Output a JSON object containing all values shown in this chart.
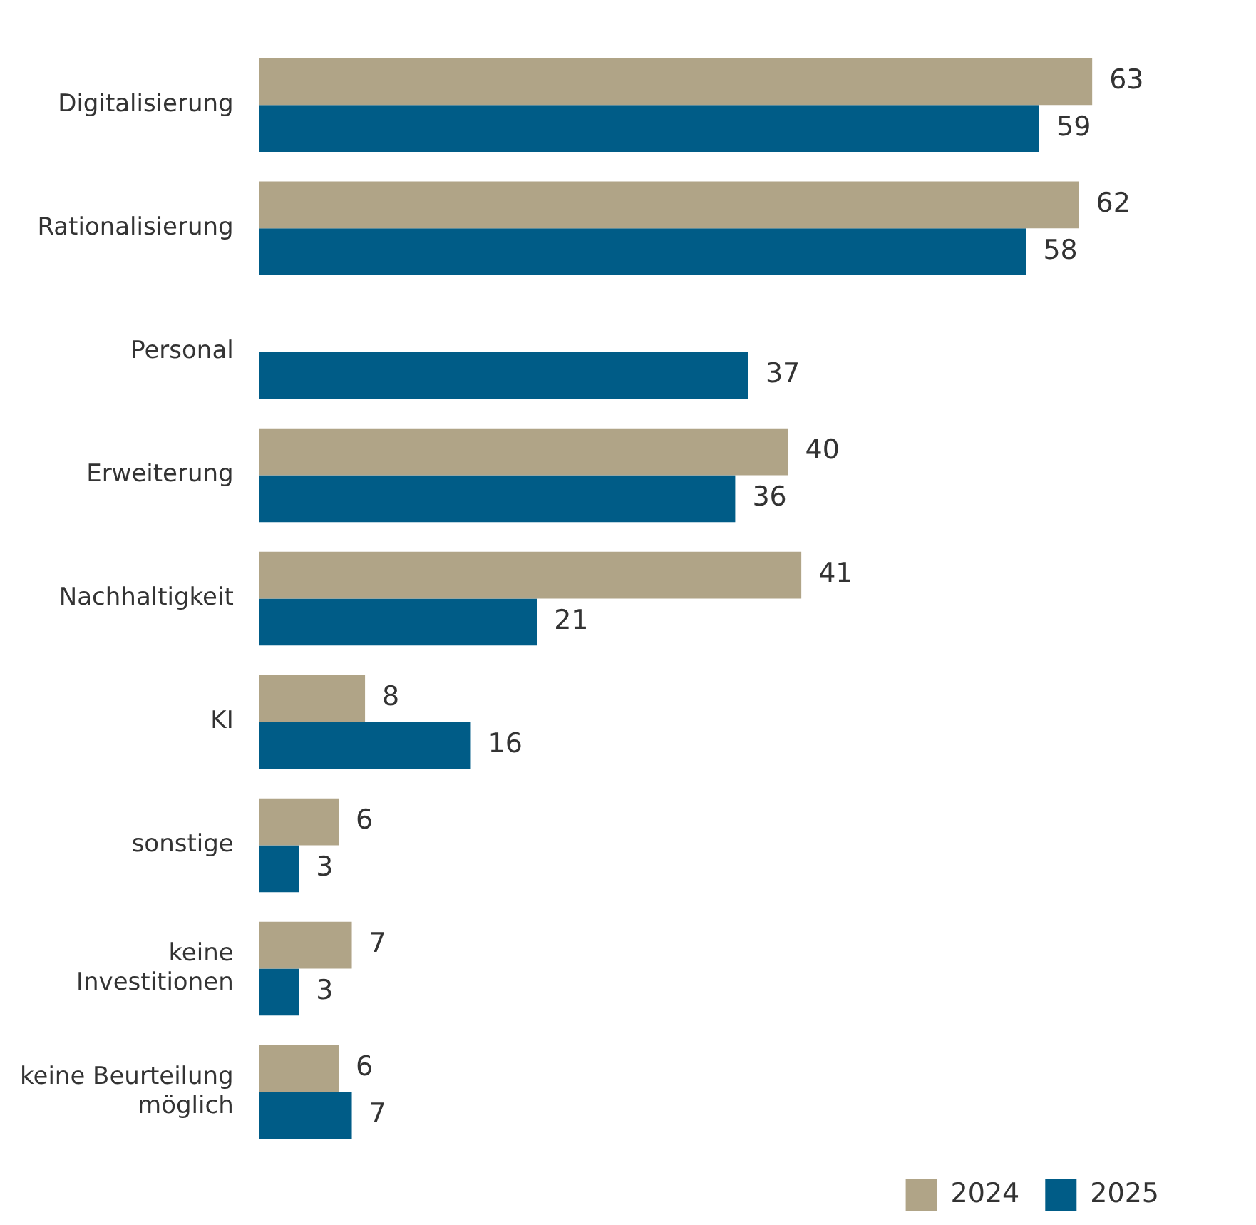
{
  "chart_data": {
    "type": "bar",
    "orientation": "horizontal",
    "categories": [
      "Digitalisierung",
      "Rationalisierung",
      "Personal",
      "Erweiterung",
      "Nachhaltigkeit",
      "KI",
      "sonstige",
      "keine Investitionen",
      "keine Beurteilung möglich"
    ],
    "series": [
      {
        "name": "2024",
        "color": "#b0a487",
        "values": [
          63,
          62,
          null,
          40,
          41,
          8,
          6,
          7,
          6
        ]
      },
      {
        "name": "2025",
        "color": "#005c87",
        "values": [
          59,
          58,
          37,
          36,
          21,
          16,
          3,
          3,
          7
        ]
      }
    ],
    "data_labels": true,
    "legend": "bottom right"
  }
}
